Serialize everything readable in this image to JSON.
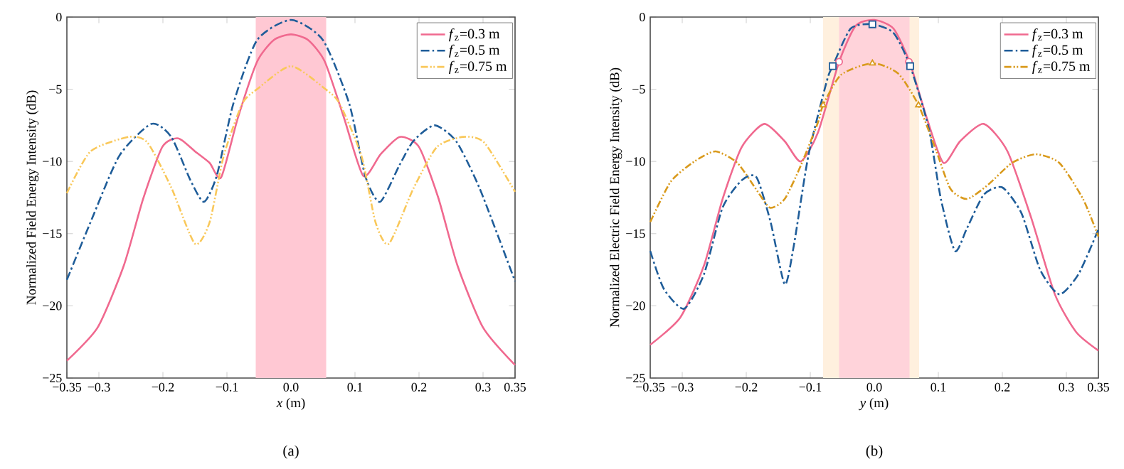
{
  "chart_data": [
    {
      "type": "line",
      "xlabel": "*x* (m)",
      "ylabel": "Normalized Field Energy Intensity (dB)",
      "annotations": [
        "(a)"
      ],
      "xlim": [
        -0.35,
        0.35
      ],
      "ylim": [
        -25,
        0
      ],
      "xticks": [
        {
          "value": -0.35,
          "label": "−0.35"
        },
        {
          "value": -0.3,
          "label": "−0.3"
        },
        {
          "value": -0.2,
          "label": "−0.2"
        },
        {
          "value": -0.1,
          "label": "−0.1"
        },
        {
          "value": 0,
          "label": "0.0"
        },
        0.1,
        0.2,
        0.3,
        0.35
      ],
      "yticks": [
        {
          "value": -25,
          "label": "−25"
        },
        {
          "value": -20,
          "label": "−20"
        },
        {
          "value": -15,
          "label": "−15"
        },
        {
          "value": -10,
          "label": "−10"
        },
        {
          "value": -5,
          "label": "−5"
        },
        0
      ],
      "legend": "top right",
      "marker": "none",
      "bands": [
        {
          "axis": "x",
          "from": -0.055,
          "to": 0.055,
          "color": "#ffc8d3"
        }
      ],
      "series": [
        {
          "name": "*f*$_{z}$=0.3 m",
          "color": "#f0698f",
          "line_style": "solid",
          "x": [
            -0.35,
            -0.302,
            -0.261,
            -0.231,
            -0.201,
            -0.176,
            -0.15,
            -0.127,
            -0.109,
            -0.083,
            -0.053,
            -0.027,
            0,
            0.027,
            0.053,
            0.083,
            0.113,
            0.14,
            0.17,
            0.2,
            0.23,
            0.26,
            0.3,
            0.35
          ],
          "values": [
            -23.8,
            -21.5,
            -17.2,
            -12.6,
            -9,
            -8.4,
            -9.3,
            -10.1,
            -11.1,
            -7,
            -3.1,
            -1.6,
            -1.2,
            -1.6,
            -3.1,
            -7,
            -11,
            -9.5,
            -8.3,
            -9,
            -12.5,
            -17.2,
            -21.5,
            -24.1
          ]
        },
        {
          "name": "*f*$_{z}$=0.5 m",
          "color": "#1f5d99",
          "line_style": "dashed",
          "x": [
            -0.35,
            -0.313,
            -0.268,
            -0.218,
            -0.187,
            -0.157,
            -0.136,
            -0.116,
            -0.09,
            -0.053,
            0,
            0.05,
            0.091,
            0.116,
            0.139,
            0.169,
            0.191,
            0.224,
            0.258,
            0.295,
            0.35
          ],
          "values": [
            -18.2,
            -14.2,
            -9.6,
            -7.4,
            -8.3,
            -11.3,
            -12.8,
            -11,
            -6,
            -1.6,
            -0.2,
            -1.6,
            -6,
            -11,
            -12.8,
            -10.3,
            -8.6,
            -7.5,
            -8.6,
            -11.9,
            -18.3
          ]
        },
        {
          "name": "*f*$_{z}$=0.75 m",
          "color": "#f9c85a",
          "line_style": "dotted",
          "x": [
            -0.35,
            -0.313,
            -0.253,
            -0.224,
            -0.187,
            -0.15,
            -0.127,
            -0.105,
            -0.076,
            -0.053,
            0,
            0.054,
            0.076,
            0.11,
            0.132,
            0.153,
            0.191,
            0.228,
            0.269,
            0.302,
            0.35
          ],
          "values": [
            -12.2,
            -9.3,
            -8.3,
            -8.7,
            -11.8,
            -15.7,
            -14.2,
            -9.6,
            -6,
            -5,
            -3.4,
            -5,
            -6,
            -9.6,
            -14.2,
            -15.7,
            -11.9,
            -9,
            -8.3,
            -8.7,
            -12.1
          ]
        }
      ]
    },
    {
      "type": "line",
      "xlabel": "*y* (m)",
      "ylabel": "Normalized Electric Field Energy Intensity (dB)",
      "annotations": [
        "(b)"
      ],
      "xlim": [
        -0.35,
        0.35
      ],
      "ylim": [
        -25,
        0
      ],
      "xticks": [
        {
          "value": -0.35,
          "label": "−0.35"
        },
        {
          "value": -0.3,
          "label": "−0.3"
        },
        {
          "value": -0.2,
          "label": "−0.2"
        },
        {
          "value": -0.1,
          "label": "−0.1"
        },
        {
          "value": 0,
          "label": "0.0"
        },
        0.1,
        0.2,
        0.3,
        0.35
      ],
      "yticks": [
        {
          "value": -25,
          "label": "−25"
        },
        {
          "value": -20,
          "label": "−20"
        },
        {
          "value": -15,
          "label": "−15"
        },
        {
          "value": -10,
          "label": "−10"
        },
        {
          "value": -5,
          "label": "−5"
        },
        0
      ],
      "legend": "top right",
      "marker": "none",
      "bands": [
        {
          "axis": "x",
          "from": -0.08,
          "to": 0.07,
          "color": "#fff0de"
        },
        {
          "axis": "x",
          "from": -0.055,
          "to": 0.055,
          "color": "#ffd3da"
        }
      ],
      "series": [
        {
          "name": "*f*$_{z}$=0.3 m",
          "color": "#f0698f",
          "line_style": "solid",
          "x": [
            -0.35,
            -0.303,
            -0.266,
            -0.237,
            -0.207,
            -0.172,
            -0.14,
            -0.115,
            -0.088,
            -0.055,
            -0.029,
            0,
            0.03,
            0.055,
            0.082,
            0.108,
            0.134,
            0.171,
            0.208,
            0.245,
            0.282,
            0.315,
            0.35
          ],
          "values": [
            -22.7,
            -20.8,
            -17.2,
            -12.6,
            -9,
            -7.4,
            -8.6,
            -10,
            -8,
            -3.1,
            -0.6,
            -0.2,
            -0.8,
            -3.1,
            -7,
            -10.1,
            -8.6,
            -7.4,
            -9.3,
            -13.9,
            -19.2,
            -21.8,
            -23.1
          ]
        },
        {
          "name": "*f*$_{z}$=0.5 m",
          "color": "#1f5d99",
          "line_style": "dashed",
          "x": [
            -0.35,
            -0.329,
            -0.297,
            -0.266,
            -0.237,
            -0.207,
            -0.184,
            -0.162,
            -0.14,
            -0.126,
            -0.103,
            -0.074,
            -0.065,
            -0.037,
            -0.003,
            0.03,
            0.056,
            0.085,
            0.104,
            0.126,
            0.145,
            0.171,
            0.2,
            0.23,
            0.259,
            0.289,
            0.319,
            0.35
          ],
          "values": [
            -16.2,
            -18.8,
            -20.2,
            -17.8,
            -13.2,
            -11.3,
            -11.1,
            -14.2,
            -18.5,
            -15.9,
            -9.6,
            -4.4,
            -3.4,
            -0.8,
            -0.5,
            -1.1,
            -3.4,
            -7.7,
            -12.6,
            -16.2,
            -14.6,
            -12.3,
            -11.8,
            -13.6,
            -17.5,
            -19.2,
            -17.8,
            -14.7
          ]
        },
        {
          "name": "*f*$_{z}$=0.75 m",
          "color": "#d99a1c",
          "line_style": "dotted",
          "x": [
            -0.35,
            -0.318,
            -0.281,
            -0.248,
            -0.214,
            -0.185,
            -0.163,
            -0.14,
            -0.115,
            -0.088,
            -0.08,
            -0.052,
            -0.003,
            0.037,
            0.069,
            0.097,
            0.119,
            0.145,
            0.178,
            0.215,
            0.252,
            0.289,
            0.326,
            0.35
          ],
          "values": [
            -14.2,
            -11.4,
            -10,
            -9.3,
            -10.1,
            -11.9,
            -13.2,
            -12.6,
            -10.3,
            -7.3,
            -6.1,
            -4,
            -3.2,
            -3.9,
            -6.1,
            -9.3,
            -11.9,
            -12.6,
            -11.6,
            -10.1,
            -9.5,
            -10.1,
            -12.6,
            -15.2
          ]
        },
        {
          "type": "scatter",
          "marker": "circle",
          "color": "#f0698f",
          "x": [
            -0.055,
            0.054
          ],
          "values": [
            -3.1,
            -3.1
          ]
        },
        {
          "type": "scatter",
          "marker": "square",
          "color": "#1f5d99",
          "x": [
            -0.065,
            -0.003,
            0.056
          ],
          "values": [
            -3.4,
            -0.5,
            -3.4
          ]
        },
        {
          "type": "scatter",
          "marker": "triangle",
          "color": "#d99a1c",
          "x": [
            -0.08,
            -0.003,
            0.069
          ],
          "values": [
            -6.1,
            -3.2,
            -6.1
          ]
        }
      ]
    }
  ]
}
